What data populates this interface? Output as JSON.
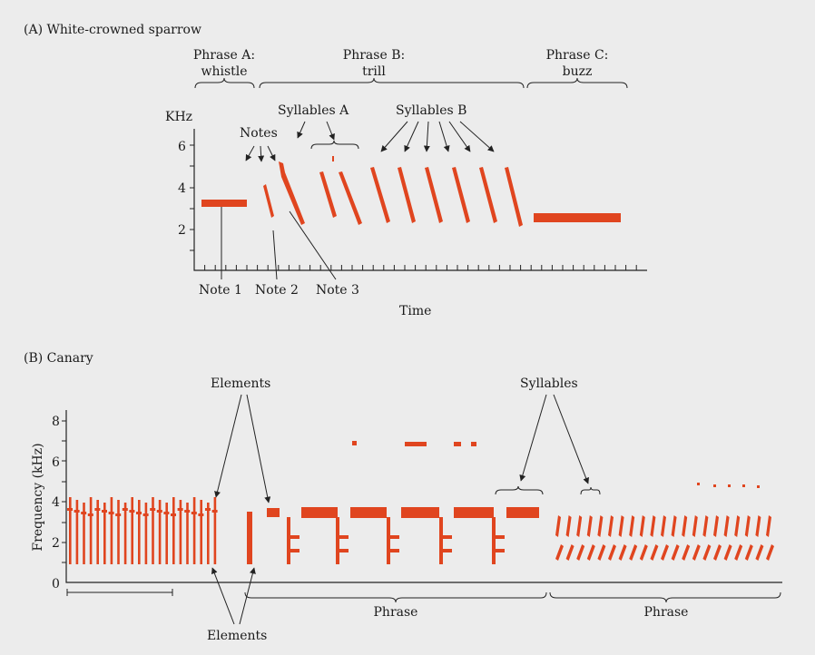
{
  "panel_a": {
    "title": "(A) White-crowned sparrow",
    "phase_a": {
      "line1": "Phrase A:",
      "line2": "whistle"
    },
    "phase_b": {
      "line1": "Phrase B:",
      "line2": "trill"
    },
    "phase_c": {
      "line1": "Phrase C:",
      "line2": "buzz"
    },
    "y_unit": "KHz",
    "y_ticks": [
      "2",
      "4",
      "6"
    ],
    "notes_label": "Notes",
    "syllables_a_label": "Syllables A",
    "syllables_b_label": "Syllables B",
    "note1": "Note 1",
    "note2": "Note 2",
    "note3": "Note 3",
    "x_label": "Time"
  },
  "panel_b": {
    "title": "(B) Canary",
    "y_label": "Frequency (kHz)",
    "y_ticks": [
      "0",
      "2",
      "4",
      "6",
      "8"
    ],
    "elements_top": "Elements",
    "elements_bottom": "Elements",
    "syllables_label": "Syllables",
    "phrase_1": "Phrase",
    "phrase_2": "Phrase"
  },
  "colors": {
    "spectrogram": "#e0451f",
    "ink": "#1a1a1a",
    "background": "#ececec"
  }
}
